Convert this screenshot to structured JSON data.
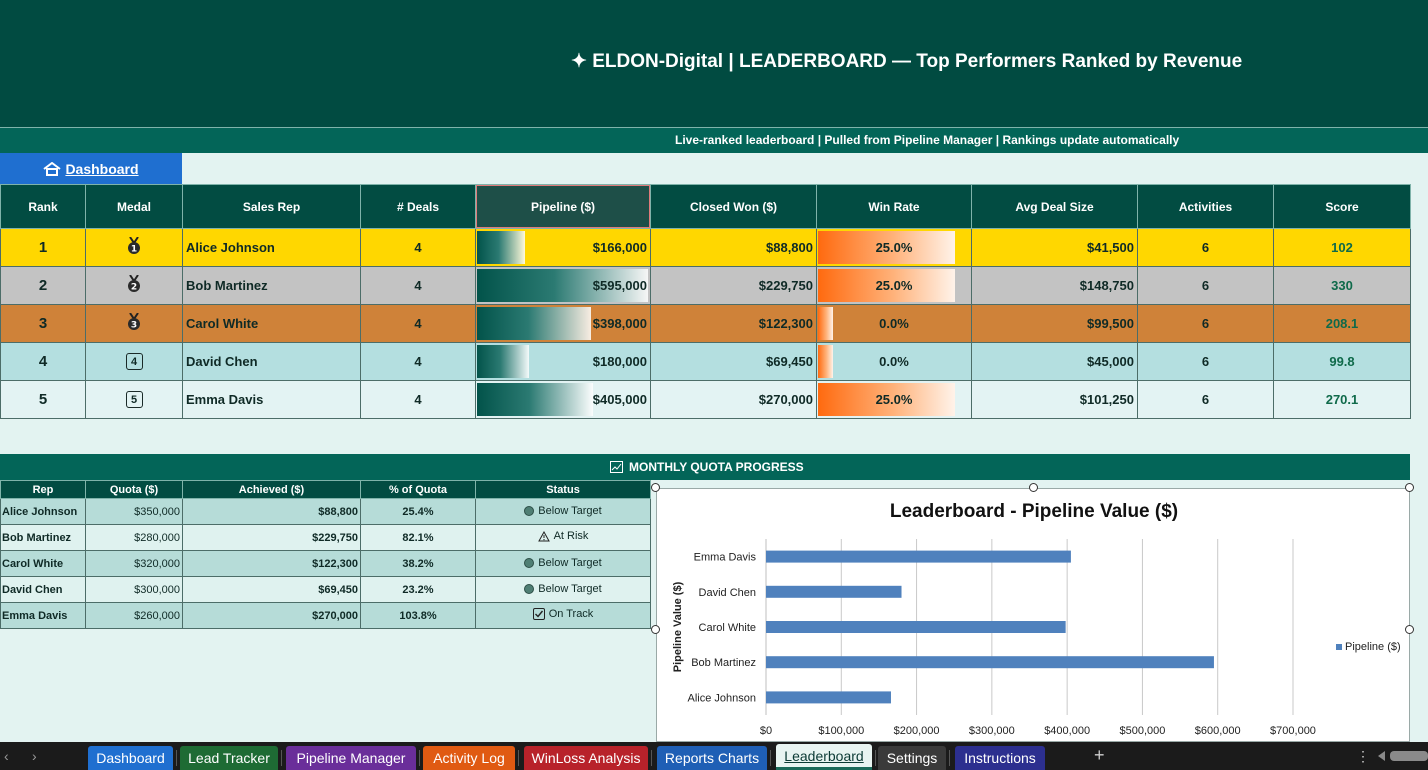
{
  "header": {
    "title": "✦  ELDON-Digital  |  LEADERBOARD  —  Top Performers Ranked by Revenue",
    "subtitle": "Live-ranked leaderboard | Pulled from Pipeline Manager | Rankings update automatically"
  },
  "dashboard_button": {
    "label": "Dashboard"
  },
  "leaderboard": {
    "columns": [
      "Rank",
      "Medal",
      "Sales Rep",
      "# Deals",
      "Pipeline ($)",
      "Closed Won ($)",
      "Win Rate",
      "Avg Deal Size",
      "Activities",
      "Score"
    ],
    "rows": [
      {
        "rank": "1",
        "medal": "1",
        "rep": "Alice Johnson",
        "deals": "4",
        "pipeline": "$166,000",
        "pipeline_value": 166000,
        "closed": "$88,800",
        "win": "25.0%",
        "win_value": 25.0,
        "avg": "$41,500",
        "activities": "6",
        "score": "102"
      },
      {
        "rank": "2",
        "medal": "2",
        "rep": "Bob Martinez",
        "deals": "4",
        "pipeline": "$595,000",
        "pipeline_value": 595000,
        "closed": "$229,750",
        "win": "25.0%",
        "win_value": 25.0,
        "avg": "$148,750",
        "activities": "6",
        "score": "330"
      },
      {
        "rank": "3",
        "medal": "3",
        "rep": "Carol White",
        "deals": "4",
        "pipeline": "$398,000",
        "pipeline_value": 398000,
        "closed": "$122,300",
        "win": "0.0%",
        "win_value": 0.0,
        "avg": "$99,500",
        "activities": "6",
        "score": "208.1"
      },
      {
        "rank": "4",
        "medal": "4",
        "rep": "David Chen",
        "deals": "4",
        "pipeline": "$180,000",
        "pipeline_value": 180000,
        "closed": "$69,450",
        "win": "0.0%",
        "win_value": 0.0,
        "avg": "$45,000",
        "activities": "6",
        "score": "99.8"
      },
      {
        "rank": "5",
        "medal": "5",
        "rep": "Emma Davis",
        "deals": "4",
        "pipeline": "$405,000",
        "pipeline_value": 405000,
        "closed": "$270,000",
        "win": "25.0%",
        "win_value": 25.0,
        "avg": "$101,250",
        "activities": "6",
        "score": "270.1"
      }
    ],
    "row_colors": [
      "#ffd700",
      "#c3c3c3",
      "#cf8239",
      "#b4dfe0",
      "#e3f3f3"
    ]
  },
  "quota": {
    "title": "MONTHLY QUOTA PROGRESS",
    "columns": [
      "Rep",
      "Quota ($)",
      "Achieved ($)",
      "% of Quota",
      "Status"
    ],
    "rows": [
      {
        "rep": "Alice Johnson",
        "quota": "$350,000",
        "achieved": "$88,800",
        "pct": "25.4%",
        "status": "Below Target",
        "status_icon": "circle-icon"
      },
      {
        "rep": "Bob Martinez",
        "quota": "$280,000",
        "achieved": "$229,750",
        "pct": "82.1%",
        "status": "At Risk",
        "status_icon": "warning-icon"
      },
      {
        "rep": "Carol White",
        "quota": "$320,000",
        "achieved": "$122,300",
        "pct": "38.2%",
        "status": "Below Target",
        "status_icon": "circle-icon"
      },
      {
        "rep": "David Chen",
        "quota": "$300,000",
        "achieved": "$69,450",
        "pct": "23.2%",
        "status": "Below Target",
        "status_icon": "circle-icon"
      },
      {
        "rep": "Emma Davis",
        "quota": "$260,000",
        "achieved": "$270,000",
        "pct": "103.8%",
        "status": "On Track",
        "status_icon": "check-box-icon"
      }
    ]
  },
  "chart_data": {
    "type": "bar",
    "orientation": "horizontal",
    "title": "Leaderboard - Pipeline Value ($)",
    "ylabel": "Pipeline Value ($)",
    "xlabel": "",
    "categories": [
      "Alice Johnson",
      "Bob Martinez",
      "Carol White",
      "David Chen",
      "Emma Davis"
    ],
    "series": [
      {
        "name": "Pipeline ($)",
        "values": [
          166000,
          595000,
          398000,
          180000,
          405000
        ]
      }
    ],
    "xlim": [
      0,
      700000
    ],
    "ticks": [
      "$0",
      "$100,000",
      "$200,000",
      "$300,000",
      "$400,000",
      "$500,000",
      "$600,000",
      "$700,000"
    ],
    "grid": true,
    "legend": "right",
    "color": "#4f81bd"
  },
  "sheet_tabs": [
    {
      "label": "Dashboard",
      "color": "#1f6fd0"
    },
    {
      "label": "Lead Tracker",
      "color": "#1e6b34"
    },
    {
      "label": "Pipeline Manager",
      "color": "#6a2e9a"
    },
    {
      "label": "Activity Log",
      "color": "#e05a12"
    },
    {
      "label": "WinLoss Analysis",
      "color": "#b8222a"
    },
    {
      "label": "Reports Charts",
      "color": "#1f5fb5"
    },
    {
      "label": "Leaderboard",
      "color": "#e8f4f1",
      "active": true
    },
    {
      "label": "Settings",
      "color": "#3a3a3a"
    },
    {
      "label": "Instructions",
      "color": "#2c2f8f"
    }
  ],
  "controls": {
    "add_sheet": "+",
    "prev": "‹",
    "next": "›",
    "more": "⋮"
  }
}
